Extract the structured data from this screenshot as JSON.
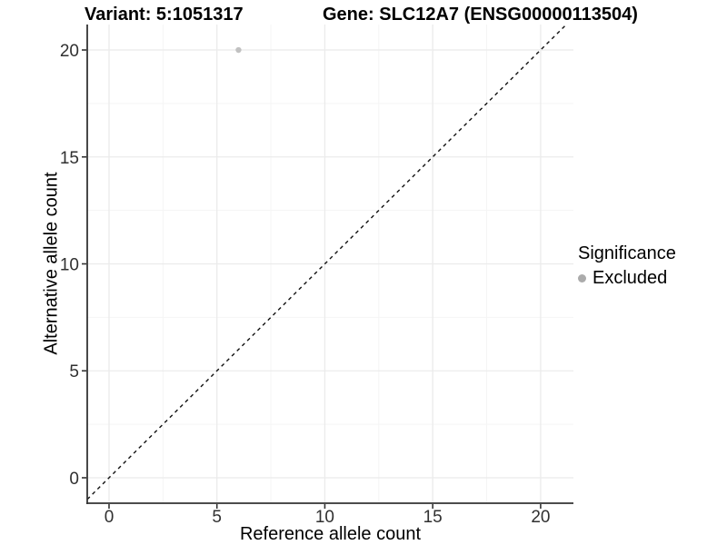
{
  "chart_data": {
    "type": "scatter",
    "title_left": "Variant: 5:1051317",
    "title_right": "Gene: SLC12A7 (ENSG00000113504)",
    "xlabel": "Reference allele count",
    "ylabel": "Alternative allele count",
    "xlim": [
      -1.01,
      21.52
    ],
    "ylim": [
      -1.19,
      21.19
    ],
    "x_ticks": [
      0,
      5,
      10,
      15,
      20
    ],
    "y_ticks": [
      0,
      5,
      10,
      15,
      20
    ],
    "x_minor_ticks": [
      2.5,
      7.5,
      12.5,
      17.5
    ],
    "y_minor_ticks": [
      2.5,
      7.5,
      12.5,
      17.5
    ],
    "grid": "major and minor gridlines, light gray, white background",
    "points": [
      {
        "x": 6,
        "y": 20,
        "significance": "Excluded"
      }
    ],
    "reference_line": {
      "type": "identity",
      "slope": 1,
      "intercept": 0,
      "style": "dashed"
    },
    "legend": {
      "title": "Significance",
      "position": "right",
      "items": [
        {
          "label": "Excluded",
          "color": "#bebebe"
        }
      ]
    },
    "colors": {
      "point": "#c1c1c1",
      "legend_dot": "#ababab",
      "grid_major": "#ebebeb",
      "grid_minor": "#f5f5f5",
      "axis": "#333333",
      "reference_line": "#111111",
      "tick_label": "#303030"
    }
  }
}
